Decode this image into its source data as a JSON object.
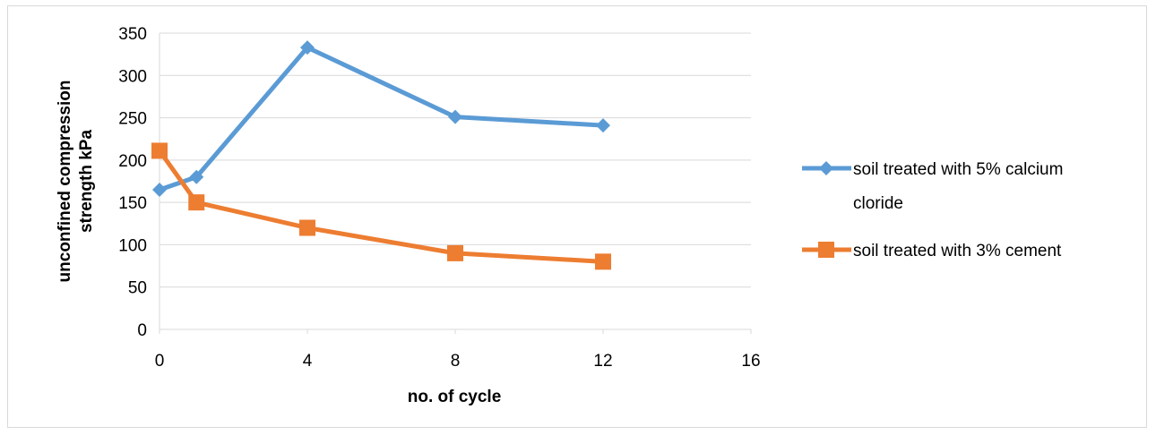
{
  "chart_data": {
    "type": "line",
    "title": "",
    "xlabel": "no. of cycle",
    "ylabel_lines": [
      "unconfined compression",
      "strength kPa"
    ],
    "xlim": [
      0,
      16
    ],
    "ylim": [
      0,
      350
    ],
    "xticks": [
      0,
      4,
      8,
      12,
      16
    ],
    "yticks": [
      0,
      50,
      100,
      150,
      200,
      250,
      300,
      350
    ],
    "grid": "horizontal",
    "legend_position": "right",
    "series": [
      {
        "name": "soil treated with 5% calcium cloride",
        "legend_lines": [
          "soil treated with 5% calcium",
          "cloride"
        ],
        "color": "#5b9bd5",
        "marker": "diamond",
        "x": [
          0,
          1,
          4,
          8,
          12
        ],
        "y": [
          165,
          180,
          333,
          251,
          241
        ]
      },
      {
        "name": "soil treated with 3% cement",
        "legend_lines": [
          "soil treated with 3% cement"
        ],
        "color": "#ed7d31",
        "marker": "square",
        "x": [
          0,
          1,
          4,
          8,
          12
        ],
        "y": [
          211,
          150,
          120,
          90,
          80
        ]
      }
    ]
  }
}
